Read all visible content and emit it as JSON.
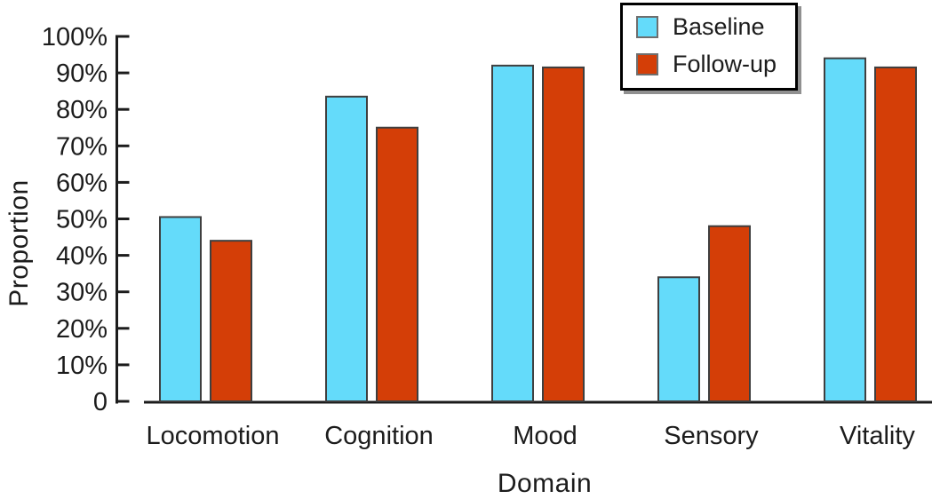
{
  "figure": {
    "background": "#ffffff"
  },
  "chart_data": {
    "type": "bar",
    "title": "",
    "xlabel": "Domain",
    "ylabel": "Proportion",
    "categories": [
      "Locomotion",
      "Cognition",
      "Mood",
      "Sensory",
      "Vitality"
    ],
    "series": [
      {
        "name": "Baseline",
        "color": "#64dbfa",
        "values": [
          50.5,
          83.5,
          92,
          34,
          94
        ]
      },
      {
        "name": "Follow-up",
        "color": "#d43e07",
        "values": [
          44,
          75,
          91.5,
          48,
          91.5
        ]
      }
    ],
    "unit": "%",
    "ylim": [
      0,
      100
    ],
    "ytick_step": 10,
    "ytick_labels": [
      "0",
      "10%",
      "20%",
      "30%",
      "40%",
      "50%",
      "60%",
      "70%",
      "80%",
      "90%",
      "100%"
    ],
    "grid": false,
    "legend_position": "top-right",
    "colors": {
      "axis": "#1c1c1c",
      "text": "#1c1c1c",
      "bar_edge": "#3f3f3f",
      "legend_border": "#000000",
      "legend_shadow": "#909090"
    }
  }
}
